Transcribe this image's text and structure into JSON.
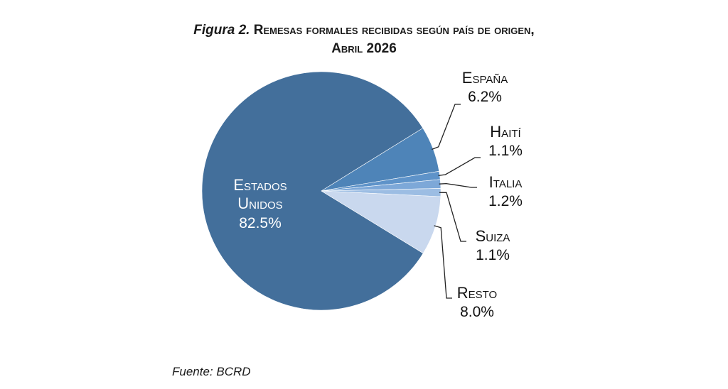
{
  "figure": {
    "label": "Figura 2.",
    "title_line1": "Remesas formales recibidas según país de origen,",
    "title_line2": "Abril 2026",
    "source": "Fuente: BCRD"
  },
  "chart_data": {
    "type": "pie",
    "title": "Figura 2. Remesas formales recibidas según país de origen, Abril 2026",
    "slices": [
      {
        "label": "Estados Unidos",
        "value": 82.5,
        "display": "82.5%",
        "color": "#436f9b"
      },
      {
        "label": "España",
        "value": 6.2,
        "display": "6.2%",
        "color": "#4e84b8"
      },
      {
        "label": "Haití",
        "value": 1.1,
        "display": "1.1%",
        "color": "#5e93c9"
      },
      {
        "label": "Italia",
        "value": 1.2,
        "display": "1.2%",
        "color": "#7da8d8"
      },
      {
        "label": "Suiza",
        "value": 1.1,
        "display": "1.1%",
        "color": "#9cbde3"
      },
      {
        "label": "Resto",
        "value": 8.0,
        "display": "8.0%",
        "color": "#c9d8ee"
      }
    ],
    "legend": "none"
  }
}
